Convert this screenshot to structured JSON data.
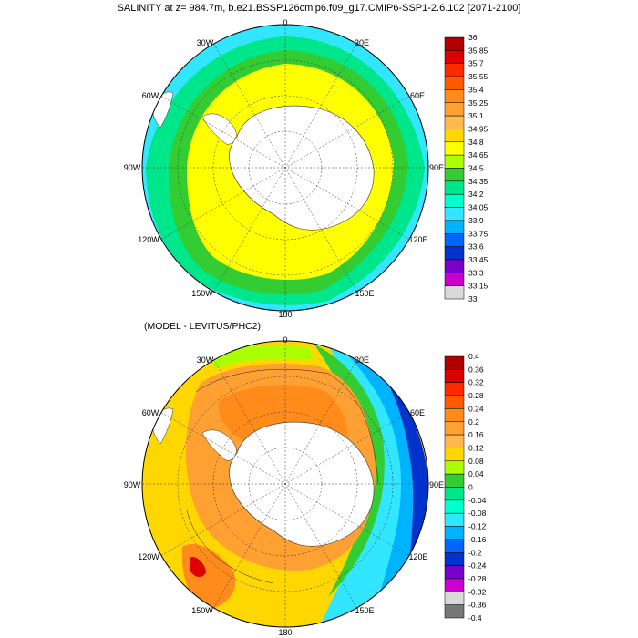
{
  "title": "SALINITY at z= 984.7m, b.e21.BSSP126cmip6.f09_g17.CMIP6-SSP1-2.6.102 [2071-2100]",
  "subtitle": "(MODEL - LEVITUS/PHC2)",
  "longitude_labels": [
    "0",
    "30E",
    "60E",
    "90E",
    "120E",
    "150E",
    "180",
    "150W",
    "120W",
    "90W",
    "60W",
    "30W"
  ],
  "top_colorbar": {
    "labels": [
      "36",
      "35.85",
      "35.7",
      "35.55",
      "35.4",
      "35.25",
      "35.1",
      "34.95",
      "34.8",
      "34.65",
      "34.5",
      "34.35",
      "34.2",
      "34.05",
      "33.9",
      "33.75",
      "33.6",
      "33.45",
      "33.3",
      "33.15",
      "33"
    ],
    "colors": [
      "#b00000",
      "#dd0000",
      "#ff2a00",
      "#ff5a00",
      "#ff8c1a",
      "#ffa033",
      "#ffb84d",
      "#ffd700",
      "#ffff00",
      "#aaff00",
      "#33cc33",
      "#00e68a",
      "#00ffcc",
      "#33e6ff",
      "#00b3ff",
      "#0066ff",
      "#0033cc",
      "#7a00cc",
      "#cc00cc",
      "#d9d9d9"
    ]
  },
  "bottom_colorbar": {
    "labels": [
      "0.4",
      "0.36",
      "0.32",
      "0.28",
      "0.24",
      "0.2",
      "0.16",
      "0.12",
      "0.08",
      "0.04",
      "0",
      "-0.04",
      "-0.08",
      "-0.12",
      "-0.16",
      "-0.2",
      "-0.24",
      "-0.28",
      "-0.32",
      "-0.36",
      "-0.4"
    ],
    "colors": [
      "#b00000",
      "#dd0000",
      "#ff2a00",
      "#ff5a00",
      "#ff8c1a",
      "#ffa033",
      "#ffb84d",
      "#ffd700",
      "#aaff00",
      "#33cc33",
      "#00e68a",
      "#00ffcc",
      "#33e6ff",
      "#00b3ff",
      "#0066ff",
      "#0033cc",
      "#7a00cc",
      "#cc00cc",
      "#d9d9d9",
      "#777777"
    ]
  }
}
